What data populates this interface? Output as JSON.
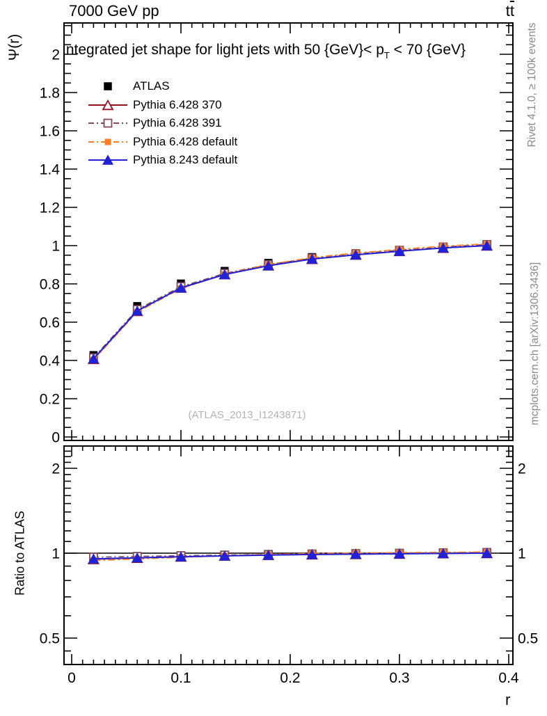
{
  "header": {
    "left": "7000 GeV pp",
    "right_main": "t",
    "right_bar": "t"
  },
  "axis_titles": {
    "y": "Ψ(r)",
    "ratio": "Ratio to ATLAS",
    "x": "r"
  },
  "watermark": "(ATLAS_2013_I1243871)",
  "right_margin": {
    "top": "Rivet 4.1.0, ≥ 100k events",
    "bottom": "mcplots.cern.ch [arXiv:1306.3436]"
  },
  "chart_data": {
    "type": "line",
    "title": {
      "pre": "Integrated jet shape for light jets with 50 {GeV}< p",
      "sub": "T",
      "post": " < 70 {GeV}"
    },
    "xlabel": "r",
    "ylabel": "Ψ(r)",
    "ratio_ylabel": "Ratio to ATLAS",
    "x": [
      0.02,
      0.06,
      0.1,
      0.14,
      0.18,
      0.22,
      0.26,
      0.3,
      0.34,
      0.38
    ],
    "x_axis": {
      "range": [
        -0.007,
        0.4038
      ],
      "major_step": 0.1,
      "minor_step": 0.01,
      "labels": [
        {
          "v": 0.0,
          "t": "0"
        },
        {
          "v": 0.1,
          "t": "0.1"
        },
        {
          "v": 0.2,
          "t": "0.2"
        },
        {
          "v": 0.3,
          "t": "0.3"
        },
        {
          "v": 0.4,
          "t": "0.4"
        }
      ]
    },
    "y_axis": {
      "range": [
        0,
        2.163
      ],
      "major_step": 0.2,
      "minor_step": 0.05,
      "labels": [
        {
          "v": 0.0,
          "t": "0",
          "clipped": true
        },
        {
          "v": 0.2,
          "t": "0.2"
        },
        {
          "v": 0.4,
          "t": "0.4"
        },
        {
          "v": 0.6,
          "t": "0.6"
        },
        {
          "v": 0.8,
          "t": "0.8"
        },
        {
          "v": 1.0,
          "t": "1"
        },
        {
          "v": 1.2,
          "t": "1.2"
        },
        {
          "v": 1.4,
          "t": "1.4"
        },
        {
          "v": 1.6,
          "t": "1.6"
        },
        {
          "v": 1.8,
          "t": "1.8"
        },
        {
          "v": 2.0,
          "t": "2"
        }
      ]
    },
    "ratio_axis": {
      "scale": "log2",
      "range": [
        0.41,
        2.39
      ],
      "majors": [
        0.5,
        1,
        2
      ],
      "minors": [
        0.45,
        0.6,
        0.7,
        0.8,
        0.9,
        1.1,
        1.2,
        1.3,
        1.4,
        1.5,
        1.6,
        1.7,
        1.8,
        1.9,
        2.1,
        2.2,
        2.3
      ],
      "ref_line": 1,
      "labels": [
        {
          "v": 0.5,
          "t": "0.5"
        },
        {
          "v": 1.0,
          "t": "1"
        },
        {
          "v": 2.0,
          "t": "2"
        }
      ]
    },
    "series": [
      {
        "name": "ATLAS",
        "marker": "square-filled",
        "marker_size": 11.5,
        "color": "#000000",
        "line": "none",
        "stroke_width": 0,
        "in_ratio": false,
        "psi": [
          0.428,
          0.684,
          0.802,
          0.868,
          0.91,
          0.94,
          0.96,
          0.976,
          0.99,
          1.0
        ],
        "ratio": [
          1,
          1,
          1,
          1,
          1,
          1,
          1,
          1,
          1,
          1
        ]
      },
      {
        "name": "Pythia 6.428 370",
        "marker": "triangle-open",
        "marker_size": 14,
        "color": "#96101e",
        "line": "solid",
        "stroke_width": 1.8,
        "in_ratio": true,
        "psi": [
          0.407,
          0.658,
          0.78,
          0.85,
          0.896,
          0.93,
          0.952,
          0.971,
          0.988,
          1.0
        ],
        "ratio": [
          0.952,
          0.962,
          0.972,
          0.979,
          0.985,
          0.989,
          0.992,
          0.995,
          0.998,
          1.0
        ]
      },
      {
        "name": "Pythia 6.428 391",
        "marker": "square-open",
        "marker_size": 11,
        "color": "#7e4a5a",
        "line": "dashdot",
        "dash": "8 4 2 4",
        "stroke_width": 1.6,
        "in_ratio": true,
        "psi": [
          0.414,
          0.666,
          0.786,
          0.855,
          0.901,
          0.934,
          0.957,
          0.976,
          0.993,
          1.006
        ],
        "ratio": [
          0.968,
          0.974,
          0.98,
          0.985,
          0.99,
          0.994,
          0.997,
          1.0,
          1.003,
          1.006
        ]
      },
      {
        "name": "Pythia 6.428 default",
        "marker": "square-filled",
        "marker_size": 9,
        "color": "#ff7d1e",
        "line": "dashdot",
        "dash": "10 4 3 4",
        "stroke_width": 1.8,
        "in_ratio": true,
        "psi": [
          0.403,
          0.653,
          0.776,
          0.85,
          0.901,
          0.937,
          0.961,
          0.98,
          0.997,
          1.009
        ],
        "ratio": [
          0.942,
          0.954,
          0.967,
          0.979,
          0.99,
          0.997,
          1.001,
          1.004,
          1.007,
          1.009
        ]
      },
      {
        "name": "Pythia 8.243 default",
        "marker": "triangle-filled",
        "marker_size": 13,
        "color": "#2121d8",
        "line": "solid",
        "stroke_width": 2,
        "in_ratio": true,
        "psi": [
          0.409,
          0.659,
          0.779,
          0.849,
          0.895,
          0.93,
          0.952,
          0.971,
          0.988,
          1.0
        ],
        "ratio": [
          0.955,
          0.963,
          0.971,
          0.978,
          0.984,
          0.989,
          0.992,
          0.995,
          0.998,
          1.0
        ]
      }
    ]
  }
}
